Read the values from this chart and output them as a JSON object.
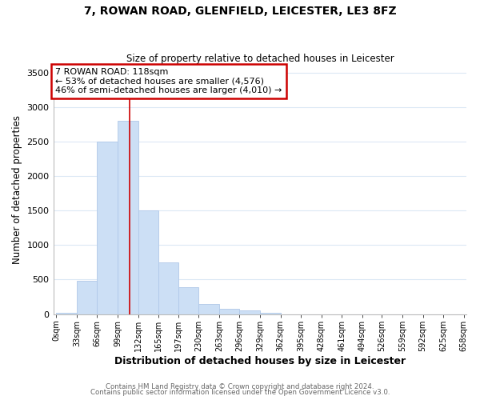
{
  "title_line1": "7, ROWAN ROAD, GLENFIELD, LEICESTER, LE3 8FZ",
  "title_line2": "Size of property relative to detached houses in Leicester",
  "xlabel": "Distribution of detached houses by size in Leicester",
  "ylabel": "Number of detached properties",
  "bar_edges": [
    0,
    33,
    66,
    99,
    132,
    165,
    197,
    230,
    263,
    296,
    329,
    362,
    395,
    428,
    461,
    494,
    526,
    559,
    592,
    625,
    658
  ],
  "bar_heights": [
    20,
    480,
    2500,
    2800,
    1500,
    750,
    390,
    150,
    75,
    50,
    20,
    0,
    0,
    0,
    0,
    0,
    0,
    0,
    0,
    0
  ],
  "bar_color": "#ccdff5",
  "bar_edgecolor": "#b0c8e8",
  "annotation_line1": "7 ROWAN ROAD: 118sqm",
  "annotation_line2": "← 53% of detached houses are smaller (4,576)",
  "annotation_line3": "46% of semi-detached houses are larger (4,010) →",
  "annotation_box_facecolor": "white",
  "annotation_box_edgecolor": "#cc0000",
  "property_x": 118,
  "ylim": [
    0,
    3600
  ],
  "xlim": [
    -5,
    663
  ],
  "yticks": [
    0,
    500,
    1000,
    1500,
    2000,
    2500,
    3000,
    3500
  ],
  "xtick_labels": [
    "0sqm",
    "33sqm",
    "66sqm",
    "99sqm",
    "132sqm",
    "165sqm",
    "197sqm",
    "230sqm",
    "263sqm",
    "296sqm",
    "329sqm",
    "362sqm",
    "395sqm",
    "428sqm",
    "461sqm",
    "494sqm",
    "526sqm",
    "559sqm",
    "592sqm",
    "625sqm",
    "658sqm"
  ],
  "xtick_positions": [
    0,
    33,
    66,
    99,
    132,
    165,
    197,
    230,
    263,
    296,
    329,
    362,
    395,
    428,
    461,
    494,
    526,
    559,
    592,
    625,
    658
  ],
  "footer_line1": "Contains HM Land Registry data © Crown copyright and database right 2024.",
  "footer_line2": "Contains public sector information licensed under the Open Government Licence v3.0.",
  "background_color": "#ffffff",
  "grid_color": "#dce8f5"
}
